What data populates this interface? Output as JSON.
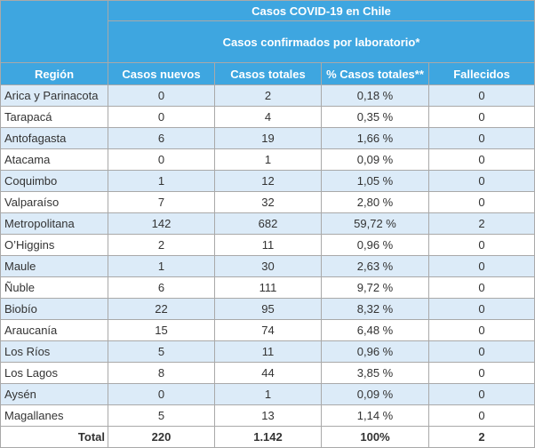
{
  "table": {
    "title": "Casos COVID-19 en Chile",
    "subtitle": "Casos confirmados por laboratorio*",
    "headers": [
      "Región",
      "Casos nuevos",
      "Casos totales",
      "% Casos totales**",
      "Fallecidos"
    ],
    "rows": [
      [
        "Arica y Parinacota",
        "0",
        "2",
        "0,18 %",
        "0"
      ],
      [
        "Tarapacá",
        "0",
        "4",
        "0,35 %",
        "0"
      ],
      [
        "Antofagasta",
        "6",
        "19",
        "1,66 %",
        "0"
      ],
      [
        "Atacama",
        "0",
        "1",
        "0,09 %",
        "0"
      ],
      [
        "Coquimbo",
        "1",
        "12",
        "1,05 %",
        "0"
      ],
      [
        "Valparaíso",
        "7",
        "32",
        "2,80 %",
        "0"
      ],
      [
        "Metropolitana",
        "142",
        "682",
        "59,72 %",
        "2"
      ],
      [
        "O’Higgins",
        "2",
        "11",
        "0,96 %",
        "0"
      ],
      [
        "Maule",
        "1",
        "30",
        "2,63 %",
        "0"
      ],
      [
        "Ñuble",
        "6",
        "111",
        "9,72 %",
        "0"
      ],
      [
        "Biobío",
        "22",
        "95",
        "8,32 %",
        "0"
      ],
      [
        "Araucanía",
        "15",
        "74",
        "6,48 %",
        "0"
      ],
      [
        "Los Ríos",
        "5",
        "11",
        "0,96 %",
        "0"
      ],
      [
        "Los Lagos",
        "8",
        "44",
        "3,85 %",
        "0"
      ],
      [
        "Aysén",
        "0",
        "1",
        "0,09 %",
        "0"
      ],
      [
        "Magallanes",
        "5",
        "13",
        "1,14 %",
        "0"
      ]
    ],
    "total": [
      "Total",
      "220",
      "1.142",
      "100%",
      "2"
    ]
  },
  "colors": {
    "header_bg": "#3ea6e0",
    "header_text": "#ffffff",
    "row_alt_bg": "#dcebf8",
    "border": "#a9a9a9"
  }
}
